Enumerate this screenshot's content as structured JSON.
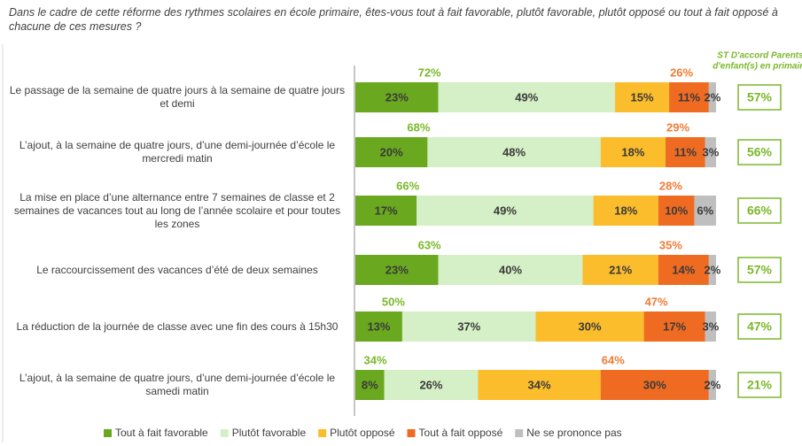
{
  "chart_data": {
    "type": "stacked-bar-horizontal",
    "title": "Dans le cadre de cette réforme des rythmes scolaires en école primaire, êtes-vous tout à fait favorable, plutôt favorable, plutôt opposé ou tout à fait opposé à chacune de ces mesures ?",
    "categories": [
      "Le passage de la semaine de quatre jours à la semaine de quatre jours et demi",
      "L’ajout, à la semaine de quatre jours, d’une demi-journée d’école le mercredi matin",
      "La mise en place d’une alternance entre 7 semaines de classe et 2 semaines de vacances tout au long de l’année scolaire et pour toutes les zones",
      "Le raccourcissement des vacances d’été de deux semaines",
      "La réduction de la journée de classe avec une fin des cours à 15h30",
      "L’ajout, à la semaine de quatre jours, d’une demi-journée d’école le samedi matin"
    ],
    "series": [
      {
        "name": "Tout à fait favorable",
        "color": "#69a81f",
        "values": [
          23,
          20,
          17,
          23,
          13,
          8
        ],
        "value_labels": [
          "23%",
          "20%",
          "17%",
          "23%",
          "13%",
          "8%"
        ]
      },
      {
        "name": "Plutôt favorable",
        "color": "#d5efc6",
        "values": [
          49,
          48,
          49,
          40,
          37,
          26
        ],
        "value_labels": [
          "49%",
          "48%",
          "49%",
          "40%",
          "37%",
          "26%"
        ]
      },
      {
        "name": "Plutôt opposé",
        "color": "#fbbd2c",
        "values": [
          15,
          18,
          18,
          21,
          30,
          34
        ],
        "value_labels": [
          "15%",
          "18%",
          "18%",
          "21%",
          "30%",
          "34%"
        ]
      },
      {
        "name": "Tout à fait opposé",
        "color": "#f06b22",
        "values": [
          11,
          11,
          10,
          14,
          17,
          30
        ],
        "value_labels": [
          "11%",
          "11%",
          "10%",
          "14%",
          "17%",
          "30%"
        ]
      },
      {
        "name": "Ne se prononce pas",
        "color": "#bfbfbf",
        "values": [
          2,
          3,
          6,
          2,
          3,
          2
        ],
        "value_labels": [
          "2%",
          "3%",
          "6%",
          "2%",
          "3%",
          "2%"
        ]
      }
    ],
    "favorable_totals": {
      "values": [
        72,
        68,
        66,
        63,
        50,
        34
      ],
      "value_labels": [
        "72%",
        "68%",
        "66%",
        "63%",
        "50%",
        "34%"
      ],
      "color": "#7ab829"
    },
    "opposed_totals": {
      "values": [
        26,
        29,
        28,
        35,
        47,
        64
      ],
      "value_labels": [
        "26%",
        "29%",
        "28%",
        "35%",
        "47%",
        "64%"
      ],
      "color": "#ef7b35"
    },
    "st_header": [
      "ST D'accord Parents",
      "d'enfant(s) en primaire"
    ],
    "st_values": {
      "values": [
        57,
        56,
        66,
        57,
        47,
        21
      ],
      "value_labels": [
        "57%",
        "56%",
        "66%",
        "57%",
        "47%",
        "21%"
      ],
      "color": "#7ab829"
    },
    "xlim": [
      0,
      100
    ]
  }
}
